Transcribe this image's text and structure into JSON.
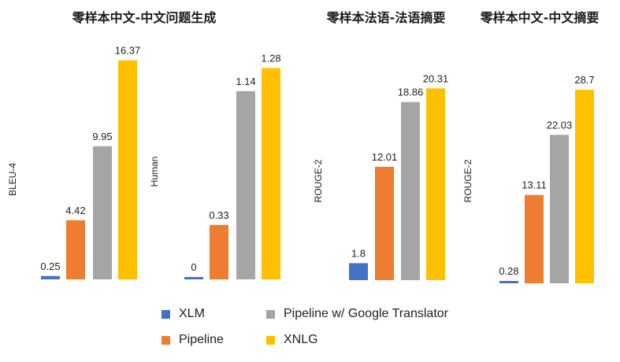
{
  "colors": {
    "XLM": "#4472c4",
    "Pipeline": "#ed7d31",
    "Pipeline w/ Google Translator": "#a5a5a5",
    "XNLG": "#ffc000"
  },
  "legend": {
    "items": [
      {
        "name": "XLM",
        "color": "#4472c4"
      },
      {
        "name": "Pipeline w/ Google Translator",
        "color": "#a5a5a5"
      },
      {
        "name": "Pipeline",
        "color": "#ed7d31"
      },
      {
        "name": "XNLG",
        "color": "#ffc000"
      }
    ]
  },
  "chart_data": [
    {
      "type": "bar",
      "title": "零样本中文-中文问题生成",
      "ylabel": "BLEU-4",
      "ylim": [
        0,
        17
      ],
      "categories": [
        "XLM",
        "Pipeline",
        "Pipeline w/ Google Translator",
        "XNLG"
      ],
      "values": [
        0.25,
        4.42,
        9.95,
        16.37
      ],
      "value_labels": [
        "0.25",
        "4.42",
        "9.95",
        "16.37"
      ]
    },
    {
      "type": "bar",
      "title": "",
      "ylabel": "Human",
      "ylim": [
        0,
        1.33
      ],
      "categories": [
        "XLM",
        "Pipeline",
        "Pipeline w/ Google Translator",
        "XNLG"
      ],
      "values": [
        0,
        0.33,
        1.14,
        1.28
      ],
      "value_labels": [
        "0",
        "0.33",
        "1.14",
        "1.28"
      ]
    },
    {
      "type": "bar",
      "title": "零样本法语-法语摘要",
      "ylabel": "ROUGE-2",
      "ylim": [
        0,
        21
      ],
      "categories": [
        "XLM",
        "Pipeline",
        "Pipeline w/ Google Translator",
        "XNLG"
      ],
      "values": [
        1.8,
        12.01,
        18.86,
        20.31
      ],
      "value_labels": [
        "1.8",
        "12.01",
        "18.86",
        "20.31"
      ]
    },
    {
      "type": "bar",
      "title": "零样本中文-中文摘要",
      "ylabel": "ROUGE-2",
      "ylim": [
        0,
        30
      ],
      "categories": [
        "XLM",
        "Pipeline",
        "Pipeline w/ Google Translator",
        "XNLG"
      ],
      "values": [
        0.28,
        13.11,
        22.03,
        28.7
      ],
      "value_labels": [
        "0.28",
        "13.11",
        "22.03",
        "28.7"
      ]
    }
  ]
}
